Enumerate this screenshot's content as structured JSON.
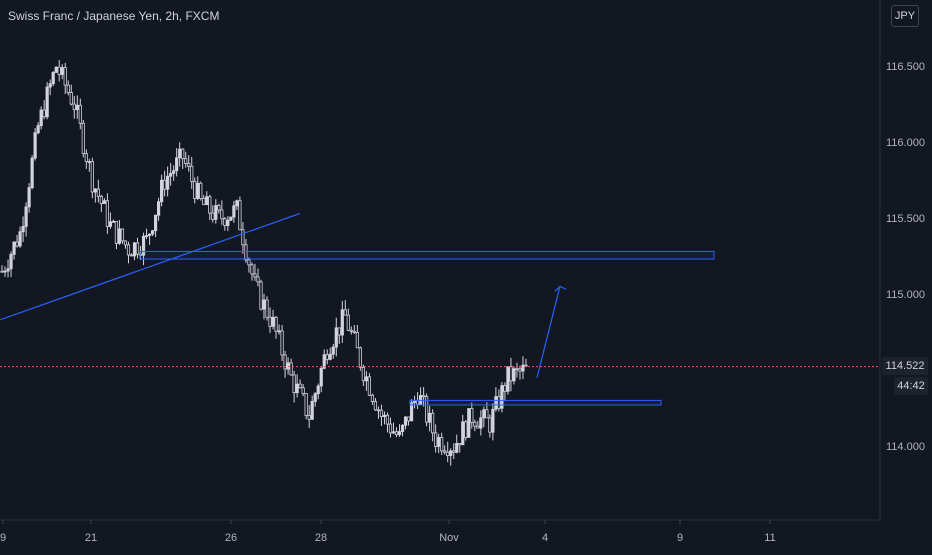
{
  "title": "Swiss Franc / Japanese Yen, 2h, FXCM",
  "currency": "JPY",
  "last_price": "114.522",
  "countdown": "44:42",
  "icons": {
    "arrow": "arrow-up-icon"
  },
  "colors": {
    "background": "#131722",
    "candle": "#d1d4dc",
    "drawing": "#2962ff",
    "price_line": "#ef5350",
    "text": "#b2b5be"
  },
  "chart_data": {
    "type": "candlestick",
    "title": "Swiss Franc / Japanese Yen, 2h, FXCM",
    "y_ticks": [
      "116.500",
      "116.000",
      "115.500",
      "115.000",
      "114.000"
    ],
    "x_ticks": [
      "9",
      "21",
      "26",
      "28",
      "Nov",
      "4",
      "9",
      "11"
    ],
    "ylim": [
      113.45,
      116.9
    ],
    "last_price": 114.522,
    "price_path": [
      115.15,
      115.4,
      116.1,
      116.5,
      116.25,
      115.75,
      115.45,
      115.3,
      115.35,
      115.75,
      115.9,
      115.6,
      115.5,
      115.55,
      115.05,
      114.8,
      114.45,
      114.2,
      114.65,
      114.85,
      114.5,
      114.2,
      114.05,
      114.35,
      114.05,
      114.0,
      114.2,
      114.15,
      114.45,
      114.5
    ],
    "drawings": [
      {
        "type": "trendline",
        "from": [
          0,
          114.83
        ],
        "to": [
          300,
          115.53
        ]
      },
      {
        "type": "zone",
        "x": [
          140,
          714
        ],
        "y": [
          115.23,
          115.28
        ]
      },
      {
        "type": "zone",
        "x": [
          410,
          661
        ],
        "y": [
          114.27,
          114.3
        ]
      },
      {
        "type": "arrow",
        "from": [
          537,
          114.45
        ],
        "to": [
          560,
          115.05
        ]
      }
    ]
  }
}
